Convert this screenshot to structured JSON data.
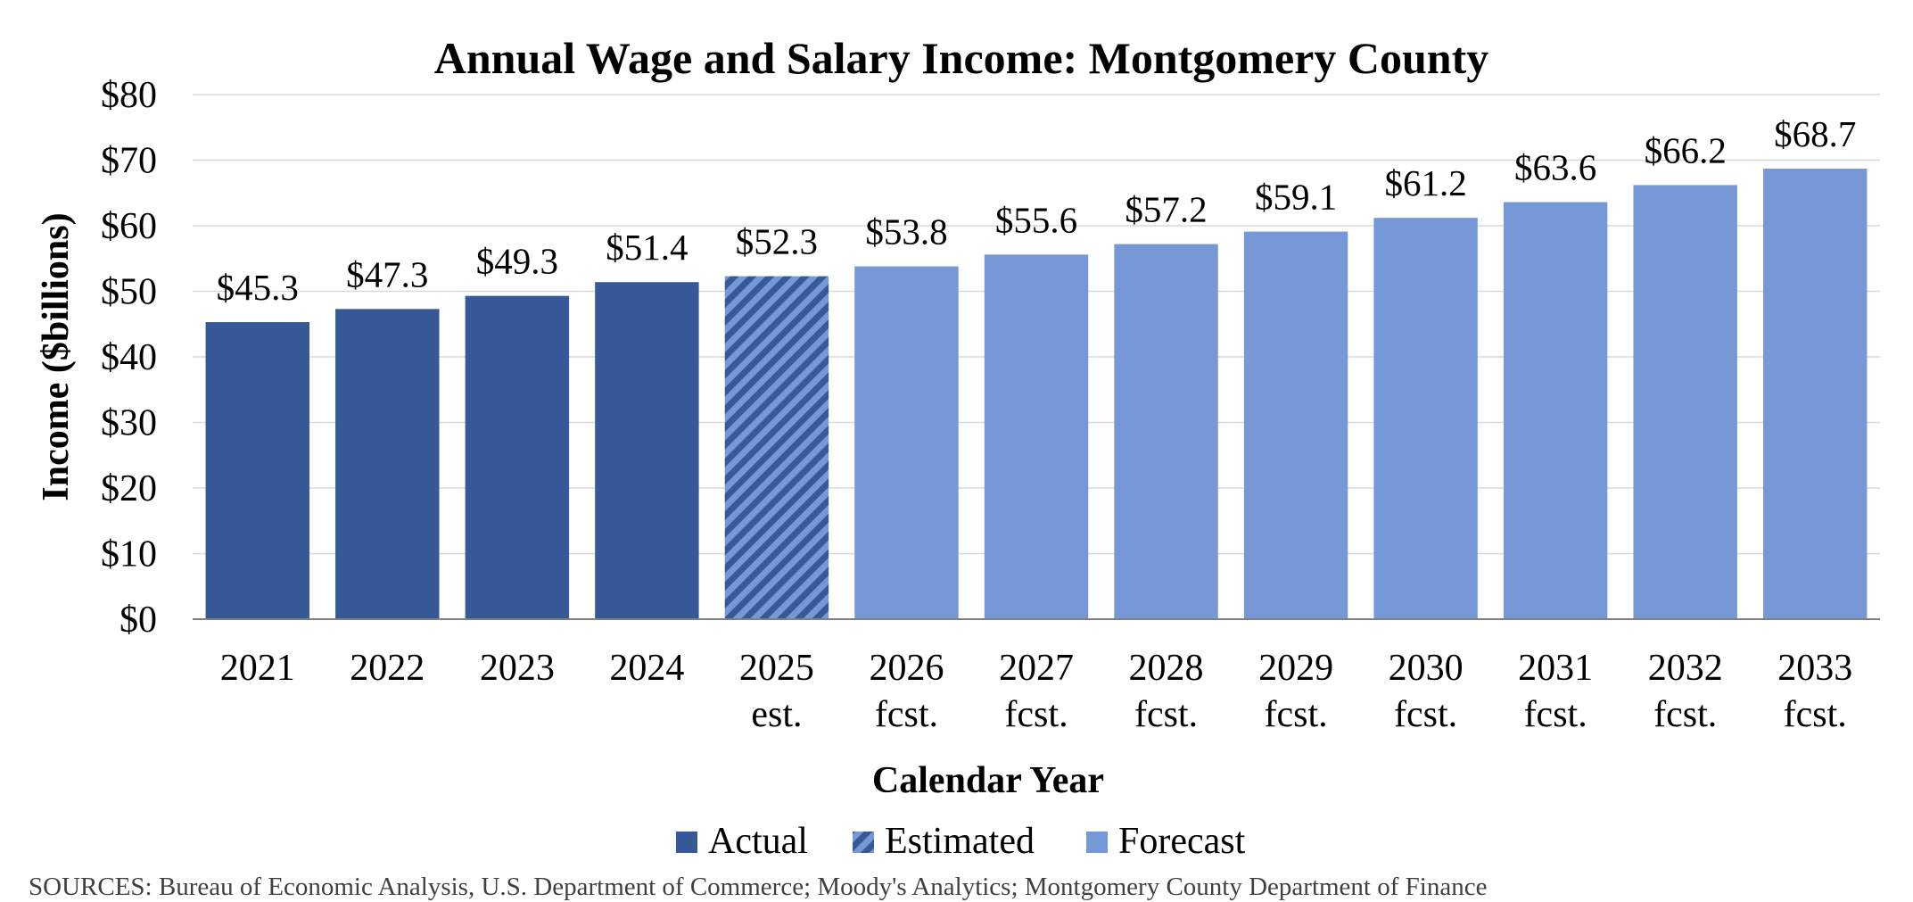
{
  "chart_data": {
    "type": "bar",
    "title": "Annual Wage and Salary Income: Montgomery County",
    "xlabel": "Calendar Year",
    "ylabel": "Income ($billions)",
    "ylim": [
      0,
      80
    ],
    "ytick_step": 10,
    "ytick_labels": [
      "$0",
      "$10",
      "$20",
      "$30",
      "$40",
      "$50",
      "$60",
      "$70",
      "$80"
    ],
    "grid": true,
    "legend_position": "bottom",
    "categories": [
      [
        "2021"
      ],
      [
        "2022"
      ],
      [
        "2023"
      ],
      [
        "2024"
      ],
      [
        "2025",
        "est."
      ],
      [
        "2026",
        "fcst."
      ],
      [
        "2027",
        "fcst."
      ],
      [
        "2028",
        "fcst."
      ],
      [
        "2029",
        "fcst."
      ],
      [
        "2030",
        "fcst."
      ],
      [
        "2031",
        "fcst."
      ],
      [
        "2032",
        "fcst."
      ],
      [
        "2033",
        "fcst."
      ]
    ],
    "values": [
      45.3,
      47.3,
      49.3,
      51.4,
      52.3,
      53.8,
      55.6,
      57.2,
      59.1,
      61.2,
      63.6,
      66.2,
      68.7
    ],
    "data_labels": [
      "$45.3",
      "$47.3",
      "$49.3",
      "$51.4",
      "$52.3",
      "$53.8",
      "$55.6",
      "$57.2",
      "$59.1",
      "$61.2",
      "$63.6",
      "$66.2",
      "$68.7"
    ],
    "bar_kinds": [
      "actual",
      "actual",
      "actual",
      "actual",
      "estimated",
      "forecast",
      "forecast",
      "forecast",
      "forecast",
      "forecast",
      "forecast",
      "forecast",
      "forecast"
    ],
    "legend": [
      {
        "key": "actual",
        "label": "Actual"
      },
      {
        "key": "estimated",
        "label": "Estimated"
      },
      {
        "key": "forecast",
        "label": "Forecast"
      }
    ],
    "colors": {
      "actual": "#365A97",
      "estimated_dark": "#365A97",
      "estimated_light": "#7698D6",
      "forecast": "#7698D6",
      "grid": "#D9D9D9",
      "axis": "#808080"
    },
    "source_note": "SOURCES:  Bureau of Economic Analysis, U.S. Department of Commerce;  Moody's Analytics;  Montgomery County Department of Finance"
  }
}
